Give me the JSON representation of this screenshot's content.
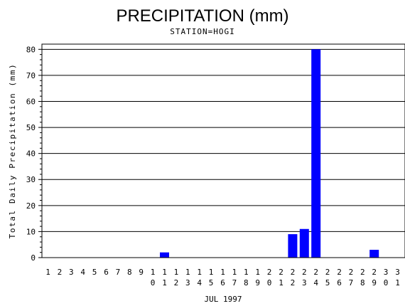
{
  "chart_data": {
    "type": "bar",
    "title": "PRECIPITATION (mm)",
    "subtitle": "STATION=HOGI",
    "xlabel": "JUL 1997",
    "ylabel": "Total Daily Precipitation (mm)",
    "ylim": [
      0,
      82
    ],
    "yticks": [
      0,
      10,
      20,
      30,
      40,
      50,
      60,
      70,
      80
    ],
    "grid": true,
    "bar_color": "#0000ff",
    "categories": [
      "1",
      "2",
      "3",
      "4",
      "5",
      "6",
      "7",
      "8",
      "9",
      "10",
      "11",
      "12",
      "13",
      "14",
      "15",
      "16",
      "17",
      "18",
      "19",
      "20",
      "21",
      "22",
      "23",
      "24",
      "25",
      "26",
      "27",
      "28",
      "29",
      "30",
      "31"
    ],
    "values": [
      0,
      0,
      0,
      0,
      0,
      0,
      0,
      0,
      0,
      0,
      2,
      0,
      0,
      0,
      0,
      0,
      0,
      0,
      0,
      0,
      0,
      9,
      11,
      80,
      0,
      0,
      0,
      0,
      3,
      0,
      0
    ]
  }
}
